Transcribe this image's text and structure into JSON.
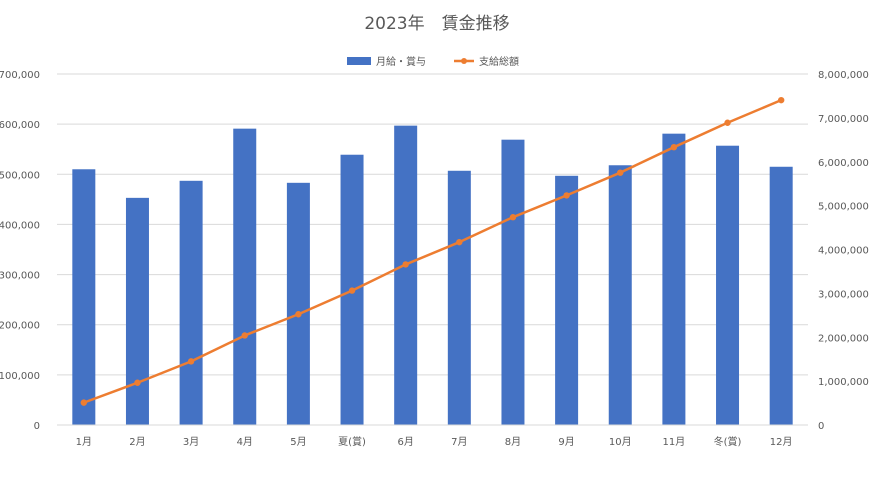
{
  "chart_data": {
    "type": "bar",
    "title": "2023年　賃金推移",
    "categories": [
      "1月",
      "2月",
      "3月",
      "4月",
      "5月",
      "夏(賞)",
      "6月",
      "7月",
      "8月",
      "9月",
      "10月",
      "11月",
      "冬(賞)",
      "12月"
    ],
    "series": [
      {
        "name": "月給・賞与",
        "type": "bar",
        "axis": "left",
        "color": "#4472C4",
        "values": [
          510000,
          453000,
          487000,
          591000,
          483000,
          539000,
          597000,
          507000,
          569000,
          497000,
          518000,
          581000,
          557000,
          515000
        ]
      },
      {
        "name": "支給総額",
        "type": "line",
        "axis": "right",
        "color": "#ED7D31",
        "values": [
          510000,
          963000,
          1450000,
          2041000,
          2524000,
          3063000,
          3660000,
          4167000,
          4736000,
          5233000,
          5751000,
          6332000,
          6889000,
          7404000
        ]
      }
    ],
    "y_left": {
      "min": 0,
      "max": 700000,
      "ticks": [
        "0",
        "100,000",
        "200,000",
        "300,000",
        "400,000",
        "500,000",
        "600,000",
        "700,000"
      ]
    },
    "y_right": {
      "min": 0,
      "max": 8000000,
      "ticks": [
        "0",
        "1,000,000",
        "2,000,000",
        "3,000,000",
        "4,000,000",
        "5,000,000",
        "6,000,000",
        "7,000,000",
        "8,000,000"
      ]
    },
    "grid": true,
    "legend_position": "top"
  }
}
